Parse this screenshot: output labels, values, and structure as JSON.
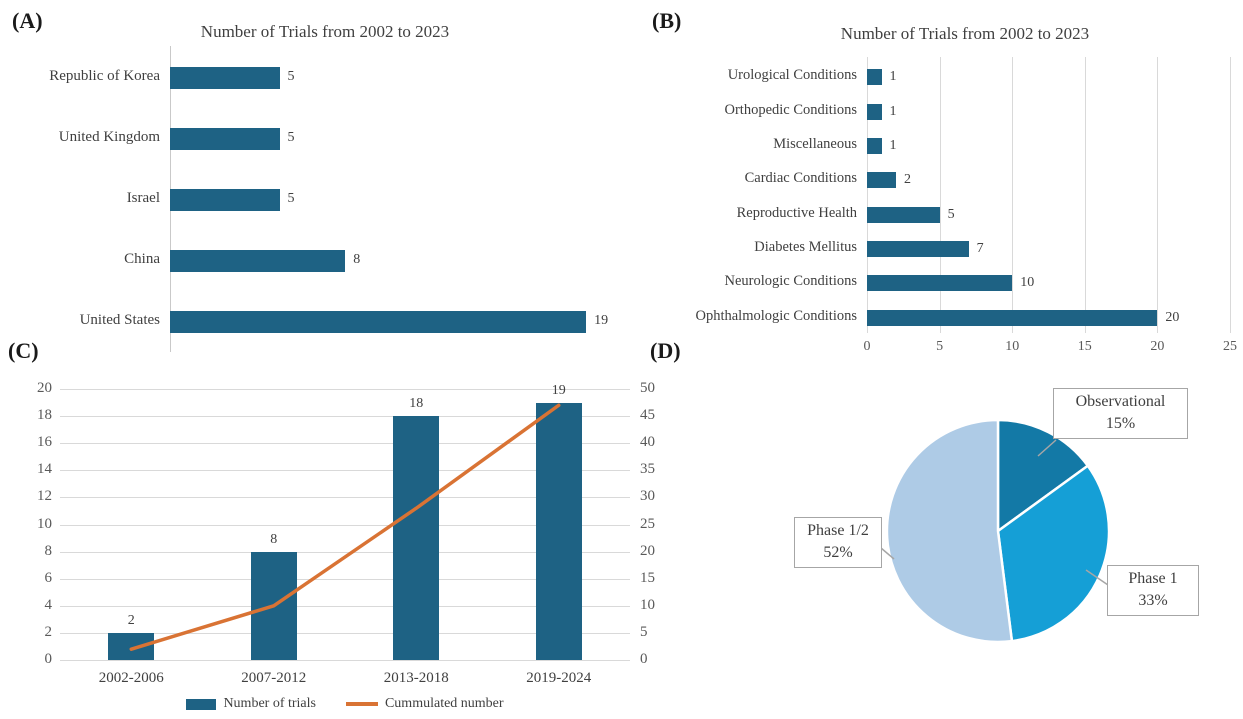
{
  "figure_title_repeated": "Number of Trials from 2002 to 2023",
  "panels": {
    "a_label": "(A)",
    "b_label": "(B)",
    "c_label": "(C)",
    "d_label": "(D)"
  },
  "colors": {
    "bar_blue": "#1e6284",
    "line_orange": "#d97334",
    "pie_dark": "#1379a6",
    "pie_mid": "#159fd6",
    "pie_light": "#aecbe6",
    "grid": "#d9d9d9",
    "tick_text": "#595959",
    "title_text": "#3f3f3f",
    "callout_border": "#a6a6a6"
  },
  "chart_data": [
    {
      "panel": "A",
      "type": "bar",
      "orientation": "horizontal",
      "title": "Number of Trials from 2002 to 2023",
      "categories": [
        "Republic of Korea",
        "United Kingdom",
        "Israel",
        "China",
        "United States"
      ],
      "values": [
        5,
        5,
        5,
        8,
        19
      ],
      "xlim": [
        0,
        19
      ],
      "data_labels": [
        5,
        5,
        5,
        8,
        19
      ],
      "grid": false,
      "legend": "none"
    },
    {
      "panel": "B",
      "type": "bar",
      "orientation": "horizontal",
      "title": "Number of Trials from 2002 to 2023",
      "categories": [
        "Urological Conditions",
        "Orthopedic Conditions",
        "Miscellaneous",
        "Cardiac Conditions",
        "Reproductive Health",
        "Diabetes Mellitus",
        "Neurologic Conditions",
        "Ophthalmologic Conditions"
      ],
      "values": [
        1,
        1,
        1,
        2,
        5,
        7,
        10,
        20
      ],
      "x_ticks": [
        0,
        5,
        10,
        15,
        20,
        25
      ],
      "xlim": [
        0,
        25
      ],
      "data_labels": [
        1,
        1,
        1,
        2,
        5,
        7,
        10,
        20
      ],
      "grid": true,
      "legend": "none"
    },
    {
      "panel": "C",
      "type": "bar+line",
      "categories": [
        "2002-2006",
        "2007-2012",
        "2013-2018",
        "2019-2024"
      ],
      "series": [
        {
          "name": "Number of trials",
          "type": "bar",
          "axis": "left",
          "values": [
            2,
            8,
            18,
            19
          ]
        },
        {
          "name": "Cummulated number",
          "type": "line",
          "axis": "right",
          "values": [
            2,
            10,
            28,
            47
          ]
        }
      ],
      "bar_data_labels": [
        2,
        8,
        18,
        19
      ],
      "left_ticks": [
        0,
        2,
        4,
        6,
        8,
        10,
        12,
        14,
        16,
        18,
        20
      ],
      "right_ticks": [
        0,
        5,
        10,
        15,
        20,
        25,
        30,
        35,
        40,
        45,
        50
      ],
      "left_ylim": [
        0,
        20
      ],
      "right_ylim": [
        0,
        50
      ],
      "grid": true,
      "legend_position": "bottom"
    },
    {
      "panel": "D",
      "type": "pie",
      "start_angle_deg": 0,
      "direction": "clockwise",
      "slices": [
        {
          "label": "Observational",
          "pct": 15,
          "pct_label": "15%"
        },
        {
          "label": "Phase 1",
          "pct": 33,
          "pct_label": "33%"
        },
        {
          "label": "Phase 1/2",
          "pct": 52,
          "pct_label": "52%"
        }
      ]
    }
  ]
}
